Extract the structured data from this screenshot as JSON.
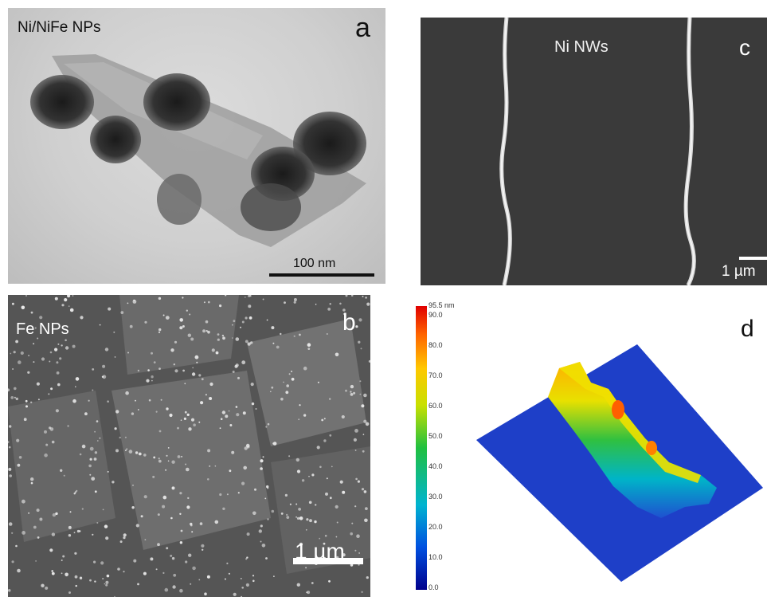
{
  "panels": {
    "a": {
      "letter": "a",
      "title": "Ni/NiFe NPs",
      "scale": "100 nm"
    },
    "b": {
      "letter": "b",
      "title": "Fe NPs",
      "scale": "1 µm"
    },
    "c": {
      "letter": "c",
      "title": "Ni NWs",
      "scale": "1 µm"
    },
    "d": {
      "letter": "d",
      "colorbar_max": "95.5 nm",
      "colorbar_ticks": [
        "90.0",
        "80.0",
        "70.0",
        "60.0",
        "50.0",
        "40.0",
        "30.0",
        "20.0",
        "10.0",
        "0.0"
      ]
    }
  },
  "colors": {
    "colorbar_stops": [
      "#00008c",
      "#0050e0",
      "#00b4d0",
      "#20c040",
      "#c8e000",
      "#ffc800",
      "#ff6400",
      "#e00000"
    ],
    "surface_base": "#1e3fc8",
    "sem_background": "#3a3a3a",
    "tem_background": "#d0d0d0"
  }
}
